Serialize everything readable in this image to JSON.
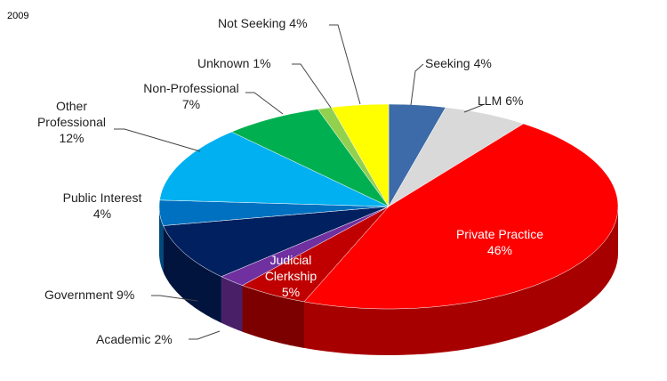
{
  "chart_data": {
    "type": "pie",
    "title": "2009",
    "categories": [
      "Seeking",
      "LLM",
      "Private Practice",
      "Judicial Clerkship",
      "Academic",
      "Government",
      "Public Interest",
      "Other Professional",
      "Non-Professional",
      "Unknown",
      "Not Seeking"
    ],
    "values": [
      4,
      6,
      46,
      5,
      2,
      9,
      4,
      12,
      7,
      1,
      4
    ],
    "value_labels": [
      "4%",
      "6%",
      "46%",
      "5%",
      "2%",
      "9%",
      "4%",
      "12%",
      "7%",
      "1%",
      "4%"
    ],
    "colors": [
      "#3d6aa8",
      "#d9d9d9",
      "#ff0000",
      "#c00000",
      "#7030a0",
      "#002060",
      "#0070c0",
      "#00b0f0",
      "#00b050",
      "#92d050",
      "#ffff00"
    ]
  }
}
